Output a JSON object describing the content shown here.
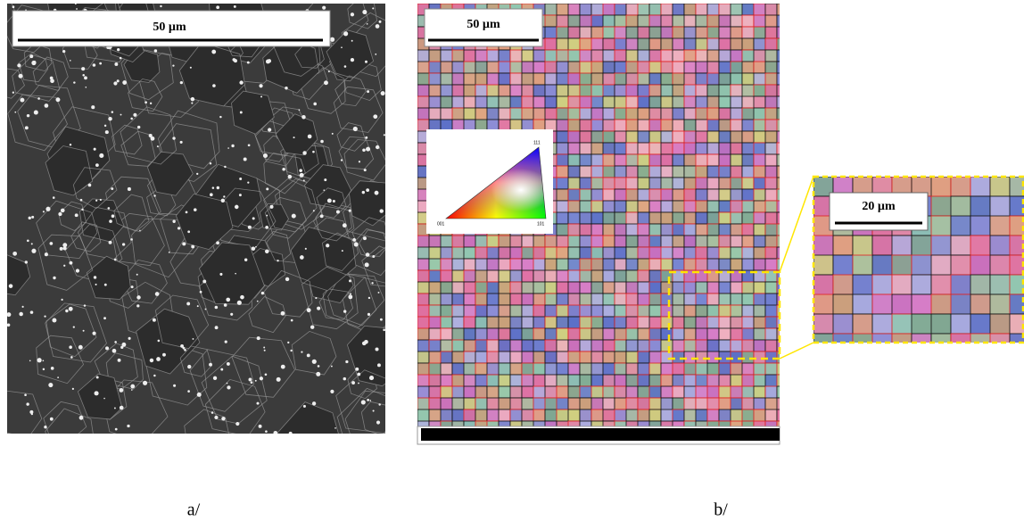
{
  "panel_a": {
    "scale_bar": "50 µm",
    "caption": "a/"
  },
  "panel_b": {
    "scale_bar": "50 µm",
    "caption": "b/",
    "ipf_labels": [
      "111",
      "001",
      "101"
    ]
  },
  "zoom": {
    "scale_bar": "20 µm"
  }
}
